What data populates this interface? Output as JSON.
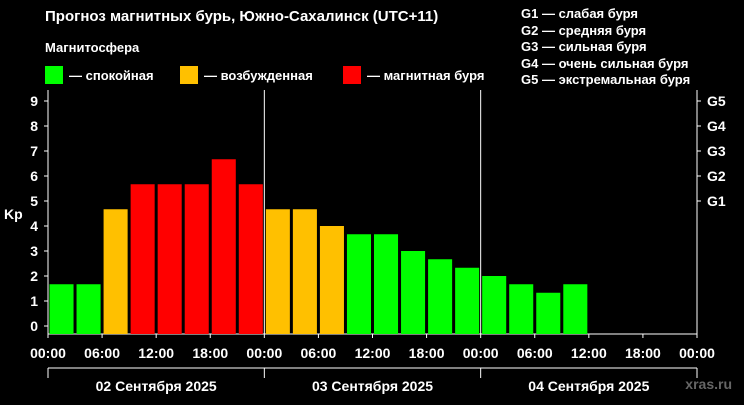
{
  "header": {
    "title": "Прогноз магнитных бурь, Южно-Сахалинск (UTC+11)",
    "magnetosphere_label": "Магнитосфера"
  },
  "legend": [
    {
      "label": "— спокойная",
      "color": "#00ff00"
    },
    {
      "label": "— возбужденная",
      "color": "#ffc000"
    },
    {
      "label": "— магнитная буря",
      "color": "#ff0000"
    }
  ],
  "g_legend": [
    "G1 — слабая буря",
    "G2 — средняя буря",
    "G3 — сильная буря",
    "G4 — очень сильная буря",
    "G5 — экстремальная буря"
  ],
  "watermark": "xras.ru",
  "chart_data": {
    "type": "bar",
    "ylabel": "Kp",
    "ylim": [
      0,
      9
    ],
    "y_ticks": [
      "0",
      "1",
      "2",
      "3",
      "4",
      "5",
      "6",
      "7",
      "8",
      "9"
    ],
    "right_ticks": [
      {
        "label": "G1",
        "value": 5
      },
      {
        "label": "G2",
        "value": 6
      },
      {
        "label": "G3",
        "value": 7
      },
      {
        "label": "G4",
        "value": 8
      },
      {
        "label": "G5",
        "value": 9
      }
    ],
    "x_ticks": [
      "00:00",
      "06:00",
      "12:00",
      "18:00",
      "00:00",
      "06:00",
      "12:00",
      "18:00",
      "00:00",
      "06:00",
      "12:00",
      "18:00",
      "00:00"
    ],
    "days": [
      "02 Сентября 2025",
      "03 Сентября 2025",
      "04 Сентября 2025"
    ],
    "interval_hours": 3,
    "total_intervals": 24,
    "values": [
      1.67,
      1.67,
      4.67,
      5.67,
      5.67,
      5.67,
      6.67,
      5.67,
      4.67,
      4.67,
      4.0,
      3.67,
      3.67,
      3.0,
      2.67,
      2.33,
      2.0,
      1.67,
      1.33,
      1.67
    ],
    "colors": {
      "quiet": "#00ff00",
      "active": "#ffc000",
      "storm": "#ff0000"
    },
    "grid": false
  }
}
